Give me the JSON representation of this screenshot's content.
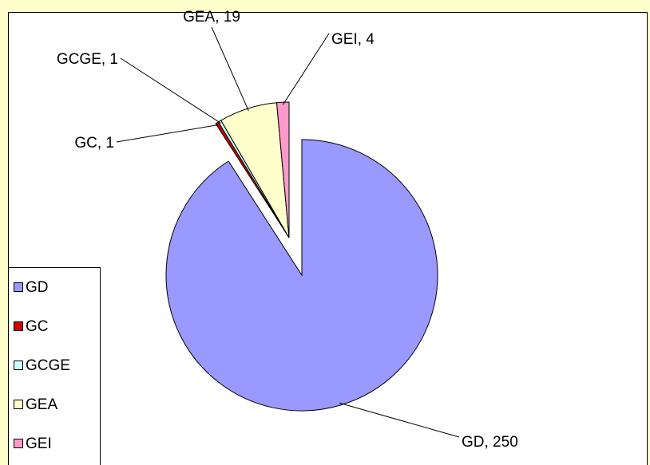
{
  "chart_data": {
    "type": "pie",
    "categories": [
      "GD",
      "GC",
      "GCGE",
      "GEA",
      "GEI"
    ],
    "values": [
      250,
      1,
      1,
      19,
      4
    ],
    "value_labels": [
      "GD, 250",
      "GC, 1",
      "GCGE, 1",
      "GEA, 19",
      "GEI, 4"
    ],
    "colors": [
      "#9999ff",
      "#cc0000",
      "#ccffff",
      "#ffffcc",
      "#ff99cc"
    ],
    "legend": "bottom-left"
  }
}
